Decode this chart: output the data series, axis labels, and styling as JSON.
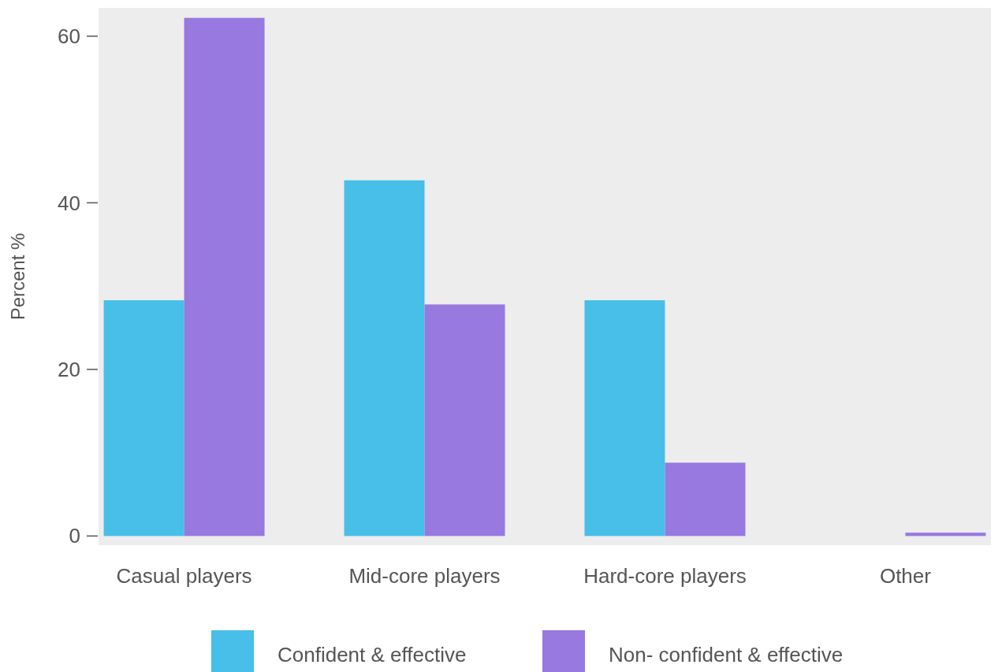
{
  "chart_data": {
    "type": "bar",
    "ylabel": "Percent %",
    "categories": [
      "Casual players",
      "Mid-core players",
      "Hard-core players",
      "Other"
    ],
    "series": [
      {
        "name": "Confident & effective",
        "color": "#47bfe9",
        "values": [
          28.3,
          42.7,
          28.3,
          0
        ]
      },
      {
        "name": "Non- confident & effective",
        "color": "#9779e0",
        "values": [
          62.2,
          27.8,
          8.8,
          0.4
        ]
      }
    ],
    "ylim": [
      -1.1,
      63.4
    ],
    "yticks": [
      0,
      20,
      40,
      60
    ],
    "grid": false,
    "legend": "bottom"
  }
}
